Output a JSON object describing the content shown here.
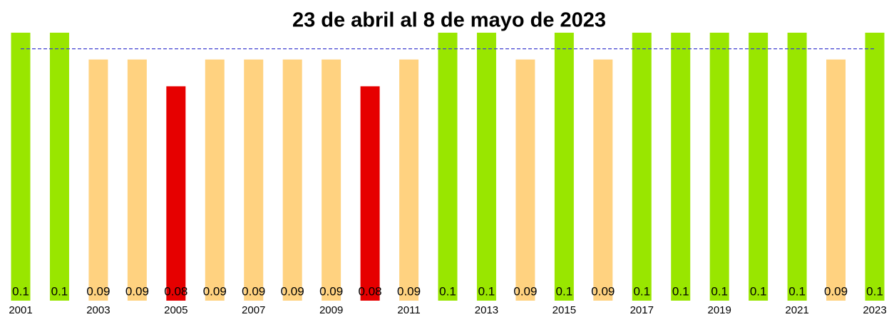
{
  "chart_data": {
    "type": "bar",
    "title": "23 de abril al 8 de mayo de 2023",
    "categories": [
      "2001",
      null,
      "2003",
      null,
      "2005",
      null,
      "2007",
      null,
      "2009",
      null,
      "2011",
      null,
      "2013",
      null,
      "2015",
      null,
      "2017",
      null,
      "2019",
      null,
      "2021",
      null,
      "2023"
    ],
    "values": [
      0.1,
      0.1,
      0.09,
      0.09,
      0.08,
      0.09,
      0.09,
      0.09,
      0.09,
      0.08,
      0.09,
      0.1,
      0.1,
      0.09,
      0.1,
      0.09,
      0.1,
      0.1,
      0.1,
      0.1,
      0.1,
      0.09,
      0.1
    ],
    "colors": [
      "#99e600",
      "#99e600",
      "#ffd280",
      "#ffd280",
      "#e60000",
      "#ffd280",
      "#ffd280",
      "#ffd280",
      "#ffd280",
      "#e60000",
      "#ffd280",
      "#99e600",
      "#99e600",
      "#ffd280",
      "#99e600",
      "#ffd280",
      "#99e600",
      "#99e600",
      "#99e600",
      "#99e600",
      "#99e600",
      "#ffd280",
      "#99e600"
    ],
    "reference_line": 0.094,
    "reference_color": "#4040d0",
    "ylim": [
      0,
      0.1
    ]
  }
}
